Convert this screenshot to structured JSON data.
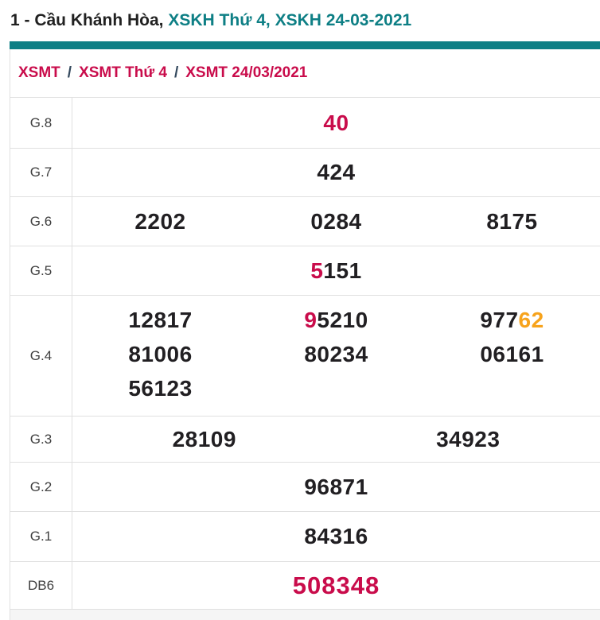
{
  "colors": {
    "teal": "#0e7f85",
    "crimson": "#c90c4b",
    "orange": "#f7a31c",
    "ink": "#211f22",
    "muted-border": "#e0e0e0",
    "label": "#3f3f3f",
    "separator": "#34495e",
    "strip": "#f5f5f5"
  },
  "title": {
    "prefix": "1 - Cầu Khánh Hòa,",
    "highlight": "XSKH Thứ 4, XSKH 24-03-2021"
  },
  "breadcrumb": {
    "separator": "/",
    "items": [
      "XSMT",
      "XSMT Thứ 4",
      "XSMT 24/03/2021"
    ]
  },
  "table": {
    "rows": [
      {
        "label": "G.8",
        "cols": [
          [
            [
              {
                "t": "40",
                "c": "crimson"
              }
            ]
          ]
        ]
      },
      {
        "label": "G.7",
        "cols": [
          [
            [
              {
                "t": "424"
              }
            ]
          ]
        ]
      },
      {
        "label": "G.6",
        "cols": [
          [
            [
              {
                "t": "2202"
              }
            ]
          ],
          [
            [
              {
                "t": "0284"
              }
            ]
          ],
          [
            [
              {
                "t": "8175"
              }
            ]
          ]
        ]
      },
      {
        "label": "G.5",
        "cols": [
          [
            [
              {
                "t": "5",
                "c": "crimson"
              },
              {
                "t": "151"
              }
            ]
          ]
        ]
      },
      {
        "label": "G.4",
        "align": "top",
        "cols": [
          [
            [
              {
                "t": "12817"
              }
            ],
            [
              {
                "t": "81006"
              }
            ],
            [
              {
                "t": "56123"
              }
            ]
          ],
          [
            [
              {
                "t": "9",
                "c": "crimson"
              },
              {
                "t": "5210"
              }
            ],
            [
              {
                "t": "80234"
              }
            ]
          ],
          [
            [
              {
                "t": "977"
              },
              {
                "t": "62",
                "c": "orange"
              }
            ],
            [
              {
                "t": "06161"
              }
            ]
          ]
        ]
      },
      {
        "label": "G.3",
        "cols": [
          [
            [
              {
                "t": "28109"
              }
            ]
          ],
          [
            [
              {
                "t": "34923"
              }
            ]
          ]
        ]
      },
      {
        "label": "G.2",
        "cols": [
          [
            [
              {
                "t": "96871"
              }
            ]
          ]
        ]
      },
      {
        "label": "G.1",
        "cols": [
          [
            [
              {
                "t": "84316"
              }
            ]
          ]
        ]
      },
      {
        "label": "DB6",
        "big": true,
        "cols": [
          [
            [
              {
                "t": "508348",
                "c": "crimson"
              }
            ]
          ]
        ]
      }
    ]
  }
}
